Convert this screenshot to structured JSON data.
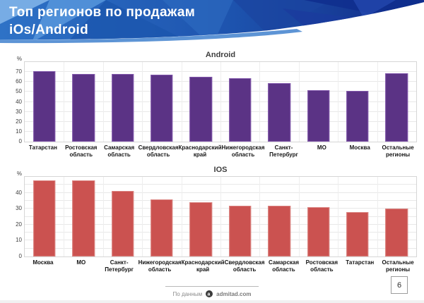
{
  "header": {
    "title_line1": "Топ регионов по продажам",
    "title_line2": "iOs/Android"
  },
  "chart_data": [
    {
      "type": "bar",
      "title": "Android",
      "unit": "%",
      "ylim": [
        0,
        80
      ],
      "yticks": [
        0,
        10,
        20,
        30,
        40,
        50,
        60,
        70
      ],
      "grid_step": 10,
      "grid": true,
      "legend": "none",
      "bar_color": "#5b3385",
      "bar_border": "#8157ab",
      "categories": [
        "Татарстан",
        "Ростовская область",
        "Самарская область",
        "Свердловская область",
        "Краснодарский край",
        "Нижегородская область",
        "Санкт-Петербург",
        "МО",
        "Москва",
        "Остальные регионы"
      ],
      "values": [
        71,
        68,
        68,
        67,
        65,
        64,
        59,
        52,
        51,
        69
      ]
    },
    {
      "type": "bar",
      "title": "IOS",
      "unit": "%",
      "ylim": [
        0,
        50
      ],
      "yticks": [
        0,
        10,
        20,
        30,
        40
      ],
      "grid_step": 5,
      "grid": true,
      "legend": "none",
      "bar_color": "#cb5250",
      "bar_border": "#da827f",
      "categories": [
        "Москва",
        "МО",
        "Санкт-Петербург",
        "Нижегородская область",
        "Краснодарский край",
        "Свердловская область",
        "Самарская область",
        "Ростовская область",
        "Татарстан",
        "Остальные регионы"
      ],
      "values": [
        48,
        48,
        41,
        36,
        34,
        32,
        32,
        31,
        28,
        30
      ]
    }
  ],
  "footer": {
    "source_prefix": "По данным",
    "source_name": "admitad.com",
    "logo": "admitad-logo",
    "page_number": "6"
  }
}
